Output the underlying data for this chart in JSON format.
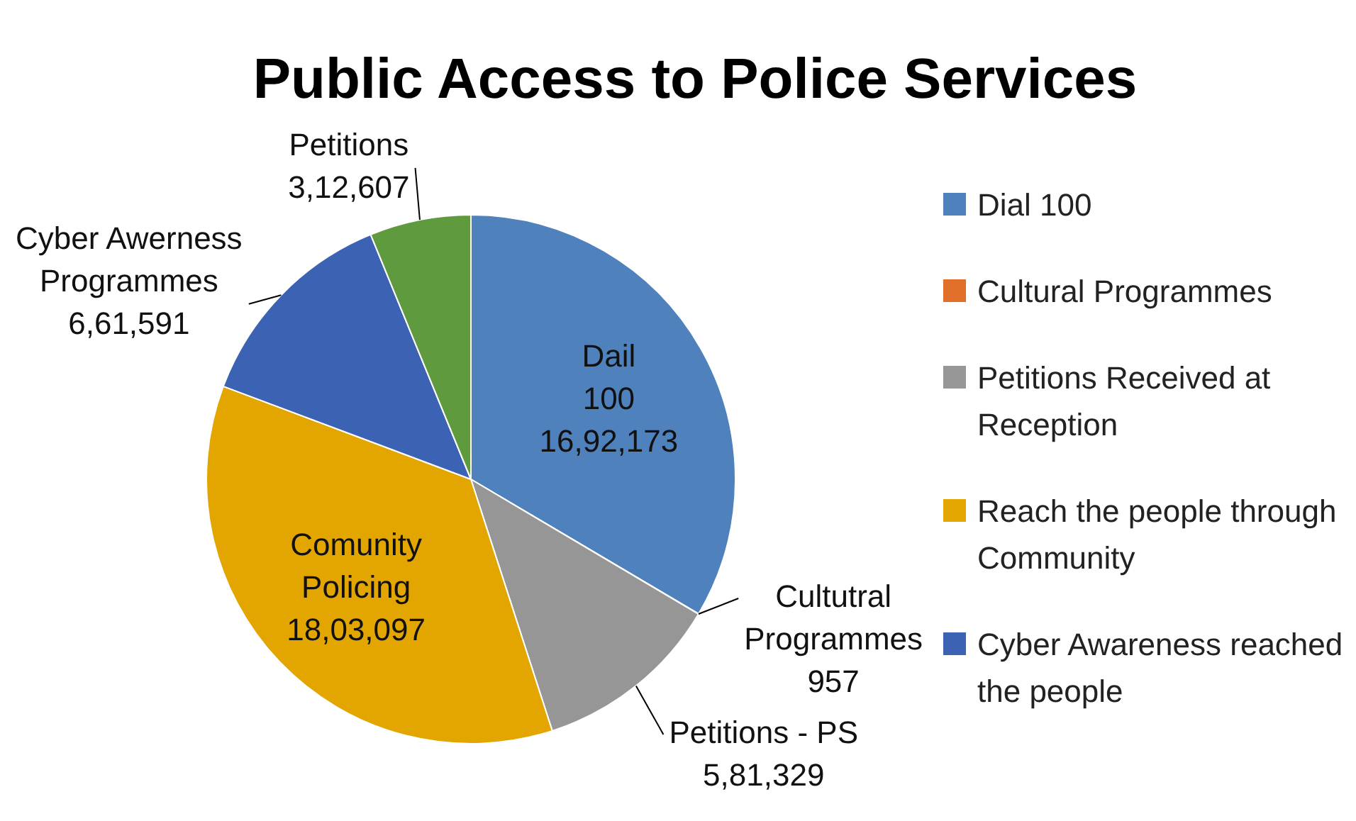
{
  "chart_data": {
    "type": "pie",
    "title": "Public Access to Police Services",
    "categories": [
      "Dial 100",
      "Cultural Programmes",
      "Petitions Received at Reception",
      "Reach the people through Community",
      "Cyber Awareness reached the people",
      null
    ],
    "values": [
      1692173,
      957,
      581329,
      1803097,
      661591,
      312607
    ],
    "colors": [
      "#4f81bd",
      "#e0702a",
      "#969696",
      "#e3a600",
      "#3c62b4",
      "#5f9a3e"
    ],
    "value_labels": [
      "Dail\n100\n16,92,173",
      "Cultutral\nProgrammes\n957",
      "Petitions - PS\n5,81,329",
      "Comunity\nPolicing\n18,03,097",
      "Cyber Awerness\nProgrammes\n6,61,591",
      "Petitions\n3,12,607"
    ],
    "legend": "right"
  }
}
